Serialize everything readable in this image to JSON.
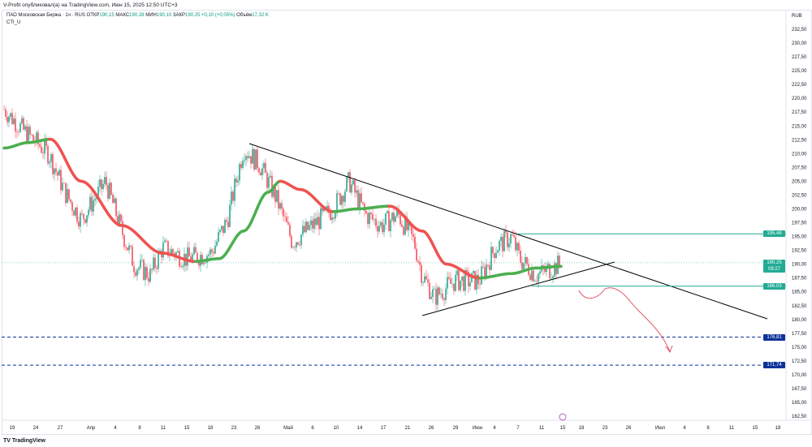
{
  "publisher": "V-Profit опубликовал(а) на TradingView.com, Июн 15, 2025 12:50 UTC+3",
  "legend": {
    "symbol": "ПАО Московская Биржа · 1ч · RUS",
    "open_label": "ОТКР",
    "open": "190,15",
    "high_label": "МАКС",
    "high": "190,28",
    "low_label": "МИН",
    "low": "190,10",
    "close_label": "ЗАКР",
    "close": "190,25",
    "change": "+0,10 (+0,05%)",
    "volume_label": "Объём",
    "volume": "17,32 K"
  },
  "indicator": "CTI_U",
  "currency": "RUB",
  "price_axis": [
    "232,50",
    "230,00",
    "227,50",
    "225,00",
    "222,50",
    "220,00",
    "217,50",
    "215,00",
    "212,50",
    "210,00",
    "207,50",
    "205,00",
    "202,50",
    "200,00",
    "197,50",
    "195,00",
    "192,50",
    "190,00",
    "187,50",
    "185,00",
    "182,50",
    "180,00",
    "177,50",
    "175,00",
    "172,50",
    "170,00",
    "167,50",
    "165,00",
    "162,50"
  ],
  "price_tags": [
    {
      "price": "195,48",
      "value": 195.48,
      "color": "#22ab94"
    },
    {
      "price": "190,25",
      "sub": "09:27",
      "value": 190.25,
      "color": "#22ab94"
    },
    {
      "price": "186,03",
      "value": 186.03,
      "color": "#22ab94"
    },
    {
      "price": "176,81",
      "value": 176.81,
      "color": "#0c3299"
    },
    {
      "price": "171,74",
      "value": 171.74,
      "color": "#0c3299"
    }
  ],
  "time_axis": [
    "19",
    "24",
    "27",
    "Апр",
    "4",
    "8",
    "11",
    "15",
    "18",
    "23",
    "26",
    "Май",
    "6",
    "10",
    "14",
    "17",
    "21",
    "26",
    "29",
    "Июн",
    "4",
    "7",
    "11",
    "15",
    "18",
    "23",
    "26",
    "Июл",
    "4",
    "8",
    "11",
    "15",
    "18"
  ],
  "brand": "TradingView",
  "colors": {
    "up": "#089981",
    "down": "#f23645",
    "cti_up": "#4caf50",
    "cti_down": "#ef5350"
  }
}
